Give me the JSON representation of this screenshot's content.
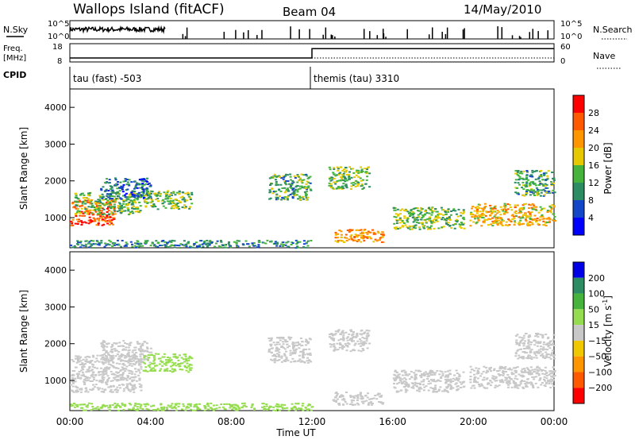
{
  "header": {
    "title": "Wallops Island (fitACF)",
    "beam": "Beam 04",
    "date": "14/May/2010"
  },
  "summary_panels": {
    "nsky_label": "N.Sky",
    "nsky_ticks": [
      "10^5",
      "10^0"
    ],
    "nsearch_label": "N.Search",
    "nsearch_ticks": [
      "10^5",
      "10^0"
    ],
    "freq_label_1": "Freq.",
    "freq_label_2": "[MHz]",
    "freq_ticks": [
      "18",
      "8"
    ],
    "nave_label": "Nave",
    "nave_ticks": [
      "60",
      "0"
    ],
    "cpid_label": "CPID",
    "cpid_segments": [
      {
        "label": "tau (fast) -503",
        "start_hour": 0
      },
      {
        "label": "themis (tau) 3310",
        "start_hour": 12
      }
    ],
    "freq_series": [
      {
        "hour": 0,
        "value": 10.2
      },
      {
        "hour": 12.0,
        "value": 10.2
      },
      {
        "hour": 12.0,
        "value": 15.3
      },
      {
        "hour": 24,
        "value": 15.3
      }
    ]
  },
  "chart_data": [
    {
      "type": "heatmap",
      "title": "Power",
      "ylabel": "Slant Range [km]",
      "xlabel": "Time UT",
      "xlim": [
        0,
        24
      ],
      "ylim": [
        180,
        4500
      ],
      "x_ticks": [
        "00:00",
        "04:00",
        "08:00",
        "12:00",
        "16:00",
        "20:00",
        "00:00"
      ],
      "y_ticks": [
        "1000",
        "2000",
        "3000",
        "4000"
      ],
      "colorbar_label": "Power [dB]",
      "colorbar_ticks": [
        "28",
        "24",
        "20",
        "16",
        "12",
        "8",
        "4"
      ],
      "colorbar_colors": [
        "#ff0000",
        "#ff5a00",
        "#ff9600",
        "#e6c800",
        "#46b43c",
        "#2d8c64",
        "#1446c8",
        "#0000ff"
      ],
      "regions": [
        {
          "t0": 0.0,
          "t1": 2.2,
          "r0": 800,
          "r1": 1500,
          "value": 26
        },
        {
          "t0": 0.2,
          "t1": 3.5,
          "r0": 1100,
          "r1": 1700,
          "value": 14
        },
        {
          "t0": 1.5,
          "t1": 4.0,
          "r0": 1500,
          "r1": 2100,
          "value": 8
        },
        {
          "t0": 3.6,
          "t1": 6.0,
          "r0": 1250,
          "r1": 1750,
          "value": 14
        },
        {
          "t0": 0.0,
          "t1": 12.0,
          "r0": 200,
          "r1": 400,
          "value": 10
        },
        {
          "t0": 9.8,
          "t1": 11.9,
          "r0": 1500,
          "r1": 2200,
          "value": 12
        },
        {
          "t0": 12.8,
          "t1": 14.8,
          "r0": 1800,
          "r1": 2400,
          "value": 14
        },
        {
          "t0": 13.0,
          "t1": 15.5,
          "r0": 350,
          "r1": 700,
          "value": 22
        },
        {
          "t0": 16.0,
          "t1": 19.5,
          "r0": 700,
          "r1": 1300,
          "value": 14
        },
        {
          "t0": 19.8,
          "t1": 24.0,
          "r0": 800,
          "r1": 1400,
          "value": 20
        },
        {
          "t0": 22.0,
          "t1": 24.0,
          "r0": 1600,
          "r1": 2300,
          "value": 12
        }
      ]
    },
    {
      "type": "heatmap",
      "title": "Velocity",
      "ylabel": "Slant Range [km]",
      "xlabel": "Time UT",
      "xlim": [
        0,
        24
      ],
      "ylim": [
        180,
        4500
      ],
      "x_ticks": [
        "00:00",
        "04:00",
        "08:00",
        "12:00",
        "16:00",
        "20:00",
        "00:00"
      ],
      "y_ticks": [
        "1000",
        "2000",
        "3000",
        "4000"
      ],
      "colorbar_label": "Velocity [m s",
      "colorbar_label_sup": "-1",
      "colorbar_label_end": "]",
      "colorbar_ticks": [
        "200",
        "100",
        "50",
        "15",
        "−15",
        "−50",
        "−100",
        "−200"
      ],
      "colorbar_colors": [
        "#0000e6",
        "#2d8c64",
        "#46b43c",
        "#96dc50",
        "#c8c8c8",
        "#f0c800",
        "#ff9600",
        "#ff5a00",
        "#ff0000"
      ],
      "regions": [
        {
          "t0": 0.0,
          "t1": 3.5,
          "r0": 700,
          "r1": 1700,
          "value": 0
        },
        {
          "t0": 1.5,
          "t1": 4.0,
          "r0": 1500,
          "r1": 2100,
          "value": 0
        },
        {
          "t0": 3.6,
          "t1": 6.0,
          "r0": 1250,
          "r1": 1750,
          "value": 30
        },
        {
          "t0": 0.0,
          "t1": 12.0,
          "r0": 200,
          "r1": 400,
          "value": 30
        },
        {
          "t0": 9.8,
          "t1": 11.9,
          "r0": 1500,
          "r1": 2200,
          "value": 0
        },
        {
          "t0": 12.8,
          "t1": 14.8,
          "r0": 1800,
          "r1": 2400,
          "value": 0
        },
        {
          "t0": 13.0,
          "t1": 15.5,
          "r0": 350,
          "r1": 700,
          "value": 0
        },
        {
          "t0": 16.0,
          "t1": 19.5,
          "r0": 700,
          "r1": 1300,
          "value": 0
        },
        {
          "t0": 19.8,
          "t1": 24.0,
          "r0": 800,
          "r1": 1400,
          "value": 0
        },
        {
          "t0": 22.0,
          "t1": 24.0,
          "r0": 1600,
          "r1": 2300,
          "value": 0
        }
      ]
    }
  ]
}
